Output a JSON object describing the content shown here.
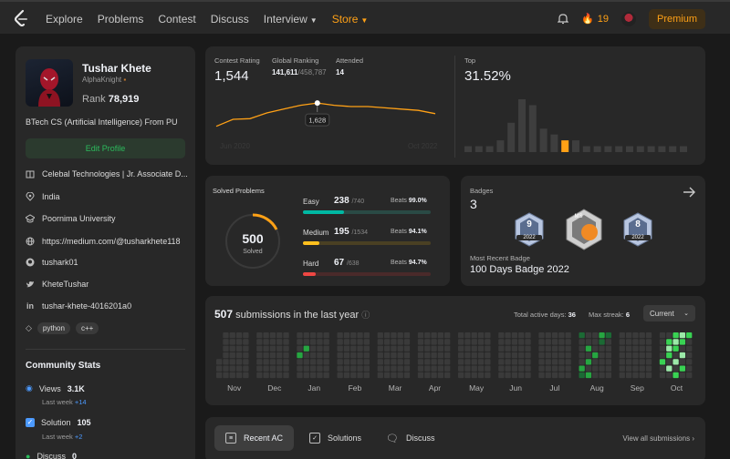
{
  "nav": {
    "links": [
      "Explore",
      "Problems",
      "Contest",
      "Discuss",
      "Interview",
      "Store"
    ],
    "streak_count": "19",
    "premium_label": "Premium"
  },
  "profile": {
    "name": "Tushar Khete",
    "username": "AlphaKnight",
    "rank_label": "Rank",
    "rank_value": "78,919",
    "bio": "BTech CS (Artificial Intelligence) From PU",
    "edit_label": "Edit Profile",
    "info": [
      {
        "icon": "building-icon",
        "text": "Celebal Technologies | Jr. Associate D..."
      },
      {
        "icon": "location-icon",
        "text": "India"
      },
      {
        "icon": "graduation-cap-icon",
        "text": "Poornima University"
      },
      {
        "icon": "globe-icon",
        "text": "https://medium.com/@tusharkhete118"
      },
      {
        "icon": "github-icon",
        "text": "tushark01"
      },
      {
        "icon": "twitter-icon",
        "text": "KheteTushar"
      },
      {
        "icon": "linkedin-icon",
        "text": "tushar-khete-4016201a0"
      }
    ],
    "tags": [
      "python",
      "c++"
    ]
  },
  "community": {
    "title": "Community Stats",
    "views": {
      "label": "Views",
      "value": "3.1K",
      "sub": "Last week",
      "delta": "+14"
    },
    "solution": {
      "label": "Solution",
      "value": "105",
      "sub": "Last week",
      "delta": "+2"
    },
    "discuss": {
      "label": "Discuss",
      "value": "0"
    }
  },
  "contest": {
    "rating_label": "Contest Rating",
    "rating": "1,544",
    "ranking_label": "Global Ranking",
    "ranking": "141,611",
    "ranking_total": "/458,787",
    "attended_label": "Attended",
    "attended": "14",
    "tooltip": "1,628",
    "x_start": "Jun 2020",
    "x_end": "Oct 2022",
    "top_label": "Top",
    "top_value": "31.52%"
  },
  "chart_data": {
    "type": "line",
    "title": "Contest Rating",
    "x": [
      "Jun 2020",
      "",
      "",
      "",
      "",
      "",
      "",
      "",
      "",
      "",
      "",
      "",
      "",
      "Oct 2022"
    ],
    "values": [
      1445,
      1500,
      1505,
      1550,
      1580,
      1610,
      1628,
      1610,
      1600,
      1600,
      1590,
      1580,
      1570,
      1544
    ],
    "highlight": {
      "value": 1628
    },
    "top_histogram": {
      "values": [
        1,
        1,
        1,
        2,
        5,
        9,
        8,
        4,
        3,
        2,
        2,
        1,
        1,
        1,
        1,
        1,
        1,
        1,
        1,
        1,
        1
      ],
      "highlight_index": 9,
      "highlight_color": "#ffa116",
      "bar_color": "#3e3e3e"
    }
  },
  "solved": {
    "title": "Solved Problems",
    "total": "500",
    "total_label": "Solved",
    "rows": [
      {
        "label": "Easy",
        "count": "238",
        "total": "/740",
        "beats_label": "Beats",
        "beats": "99.0%",
        "fill": 0.32,
        "color": "#00b8a3",
        "track": "#2a4a45"
      },
      {
        "label": "Medium",
        "count": "195",
        "total": "/1534",
        "beats_label": "Beats",
        "beats": "94.1%",
        "fill": 0.13,
        "color": "#ffc01e",
        "track": "#4a4023"
      },
      {
        "label": "Hard",
        "count": "67",
        "total": "/638",
        "beats_label": "Beats",
        "beats": "94.7%",
        "fill": 0.1,
        "color": "#ef4743",
        "track": "#4a2a2a"
      }
    ]
  },
  "badges": {
    "label": "Badges",
    "count": "3",
    "recent_label": "Most Recent Badge",
    "recent_name": "100 Days Badge 2022",
    "items": [
      {
        "top": "9",
        "year": "2022"
      },
      {
        "top": "MS",
        "year": ""
      },
      {
        "top": "8",
        "year": "2022"
      }
    ]
  },
  "submissions": {
    "count": "507",
    "label": "submissions in the last year",
    "active_label": "Total active days:",
    "active_value": "36",
    "streak_label": "Max streak:",
    "streak_value": "6",
    "select_value": "Current",
    "months": [
      "Nov",
      "Dec",
      "Jan",
      "Feb",
      "Mar",
      "Apr",
      "May",
      "Jun",
      "Jul",
      "Aug",
      "Sep",
      "Oct"
    ]
  },
  "tabs": {
    "items": [
      "Recent AC",
      "Solutions",
      "Discuss"
    ],
    "view_all": "View all submissions"
  }
}
